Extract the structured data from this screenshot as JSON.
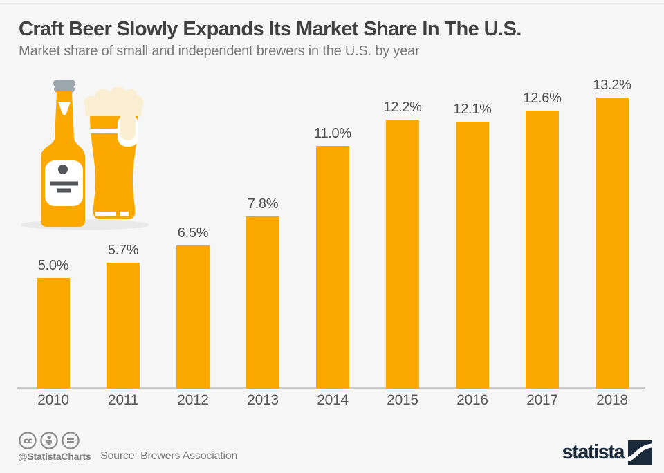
{
  "header": {
    "title": "Craft Beer Slowly Expands Its Market Share In The U.S.",
    "subtitle": "Market share of small and independent brewers in the U.S. by year"
  },
  "chart_data": {
    "type": "bar",
    "categories": [
      "2010",
      "2011",
      "2012",
      "2013",
      "2014",
      "2015",
      "2016",
      "2017",
      "2018"
    ],
    "values": [
      5.0,
      5.7,
      6.5,
      7.8,
      11.0,
      12.2,
      12.1,
      12.6,
      13.2
    ],
    "value_labels": [
      "5.0%",
      "5.7%",
      "6.5%",
      "7.8%",
      "11.0%",
      "12.2%",
      "12.1%",
      "12.6%",
      "13.2%"
    ],
    "unit": "%",
    "title": "Craft Beer Slowly Expands Its Market Share In The U.S.",
    "xlabel": "",
    "ylabel": "",
    "ylim": [
      0,
      14
    ],
    "grid": false,
    "legend": false,
    "bar_color": "#FBA800"
  },
  "illustration": {
    "name": "beer-bottle-and-glass",
    "colors": {
      "beer": "#FBA800",
      "foam": "#FAEFD2",
      "cap": "#9DA7AE",
      "label_detail": "#55565A",
      "shadow": "#E9E9E9"
    }
  },
  "footer": {
    "license_icons": [
      "cc-icon",
      "attribution-icon",
      "no-derivatives-icon"
    ],
    "handle": "@StatistaCharts",
    "source": "Source: Brewers Association",
    "brand": "statista"
  },
  "colors": {
    "background": "#F6F6F6",
    "accent": "#FBA800",
    "title_text": "#404040",
    "subtitle_text": "#7A7A7A",
    "value_text": "#4F4F4F",
    "axis_line": "#CBCBCB",
    "footer_text": "#7E7E7E",
    "brand_navy": "#1B2B3B"
  }
}
